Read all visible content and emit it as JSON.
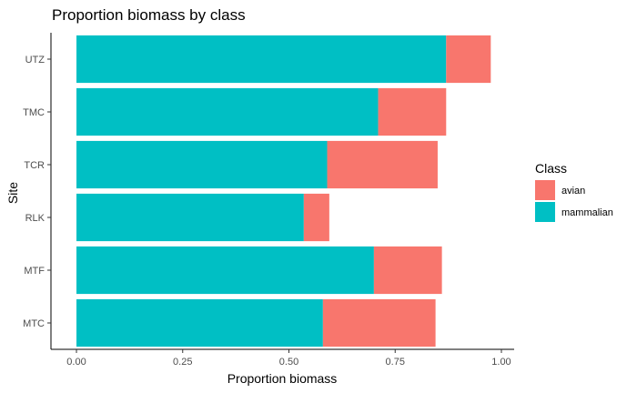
{
  "chart_data": {
    "type": "bar",
    "orientation": "horizontal",
    "stacked": true,
    "title": "Proportion biomass by class",
    "xlabel": "Proportion biomass",
    "ylabel": "Site",
    "categories": [
      "MTC",
      "MTF",
      "RLK",
      "TCR",
      "TMC",
      "UTZ"
    ],
    "series": [
      {
        "name": "mammalian",
        "color": "#00BFC4",
        "values": [
          0.58,
          0.7,
          0.535,
          0.59,
          0.71,
          0.87
        ]
      },
      {
        "name": "avian",
        "color": "#F8766D",
        "values": [
          0.265,
          0.16,
          0.06,
          0.26,
          0.16,
          0.105
        ]
      }
    ],
    "xlim": [
      -0.06,
      1.03
    ],
    "xticks": [
      0,
      0.25,
      0.5,
      0.75,
      1.0
    ],
    "xtick_labels": [
      "0.00",
      "0.25",
      "0.50",
      "0.75",
      "1.00"
    ],
    "grid": false,
    "legend": {
      "title": "Class",
      "position": "right",
      "entries": [
        {
          "label": "avian",
          "color": "#F8766D"
        },
        {
          "label": "mammalian",
          "color": "#00BFC4"
        }
      ]
    }
  }
}
